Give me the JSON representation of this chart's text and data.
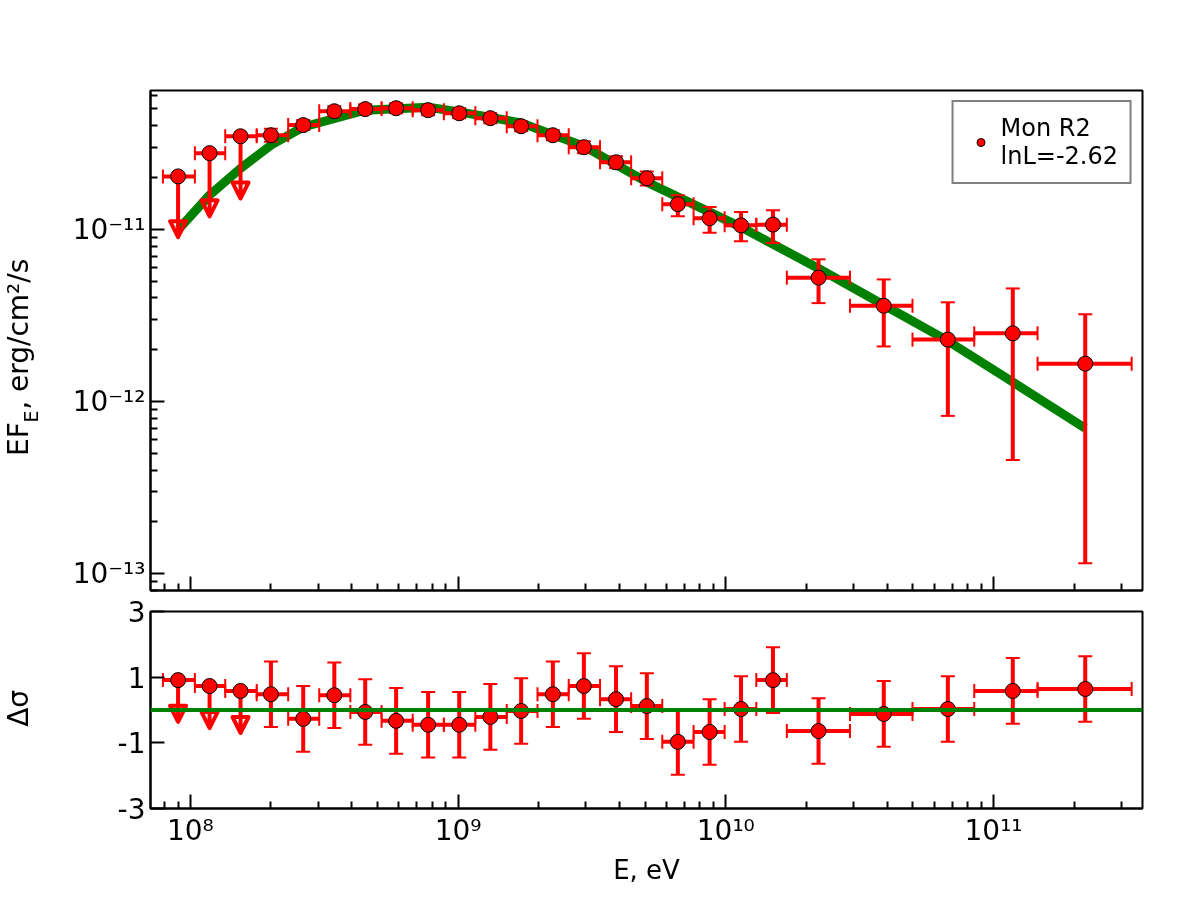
{
  "chart_data": [
    {
      "type": "scatter",
      "ylabel": "EF$_{E}$, erg/cm²/s",
      "log": "xy",
      "legend": "top right",
      "tick_labels": "y",
      "marker": "circle",
      "grid": false,
      "x": [
        90000000.0,
        118000000.0,
        154000000.0,
        200000000.0,
        264000000.0,
        345000000.0,
        450000000.0,
        587000000.0,
        773000000.0,
        1010000000.0,
        1320000000.0,
        1720000000.0,
        2260000000.0,
        2950000000.0,
        3890000000.0,
        5070000000.0,
        6620000000.0,
        8700000000.0,
        11400000000.0,
        15000000000.0,
        22200000000.0,
        38900000000.0,
        67500000000.0,
        118000000000.0,
        220000000000.0
      ],
      "xlim": [
        71000000.0,
        360000000000.0
      ],
      "xticks": [
        {
          "value": 100000000.0,
          "label": null
        },
        {
          "value": 1000000000.0,
          "label": null
        },
        {
          "value": 10000000000.0,
          "label": null
        },
        {
          "value": 100000000000.0,
          "label": null
        }
      ],
      "ylim": [
        8e-14,
        6.4e-11
      ],
      "yticks": [
        {
          "value": 1e-13,
          "label": "10⁻¹³"
        },
        {
          "value": 1e-12,
          "label": "10⁻¹²"
        },
        {
          "value": 1e-11,
          "label": "10⁻¹¹"
        }
      ],
      "series": [
        {
          "type": "line",
          "marker": "none",
          "color": "#008000",
          "x": [
            90400000.0,
            118000000.0,
            154000000.0,
            200000000.0,
            264000000.0,
            450000000.0,
            773000000.0,
            1010000000.0,
            1720000000.0,
            2950000000.0,
            5070000000.0,
            11400000000.0,
            22200000000.0,
            38000000000.0,
            65000000000.0,
            111000000000.0,
            220000000000.0
          ],
          "values": [
            1e-11,
            1.58e-11,
            2.26e-11,
            3.08e-11,
            3.93e-11,
            4.92e-11,
            5.12e-11,
            4.81e-11,
            4.15e-11,
            3.04e-11,
            1.88e-11,
            1.03e-11,
            5.93e-12,
            3.71e-12,
            2.33e-12,
            1.38e-12,
            7e-13
          ]
        },
        {
          "name": "Mon R2\nlnL=-2.62",
          "color": "#ff0000",
          "values": [
            2.03e-11,
            2.77e-11,
            3.47e-11,
            3.52e-11,
            4.03e-11,
            4.85e-11,
            4.99e-11,
            5.05e-11,
            4.92e-11,
            4.72e-11,
            4.42e-11,
            3.97e-11,
            3.52e-11,
            3e-11,
            2.45e-11,
            1.98e-11,
            1.4e-11,
            1.16e-11,
            1.055e-11,
            1.065e-11,
            5.24e-12,
            3.6e-12,
            2.29e-12,
            2.49e-12,
            1.66e-12
          ],
          "errors": [
            [
              9e-12,
              2.03e-11
            ],
            [
              1.19e-11,
              2.77e-11
            ],
            [
              1.51e-11,
              3.47e-11
            ],
            [
              3.23e-11,
              3.84e-11
            ],
            [
              3.77e-11,
              4.31e-11
            ],
            [
              4.54e-11,
              5.18e-11
            ],
            [
              4.67e-11,
              5.33e-11
            ],
            [
              4.72e-11,
              5.4e-11
            ],
            [
              4.6e-11,
              5.26e-11
            ],
            [
              4.42e-11,
              5.05e-11
            ],
            [
              4.13e-11,
              4.72e-11
            ],
            [
              3.71e-11,
              4.24e-11
            ],
            [
              3.29e-11,
              3.76e-11
            ],
            [
              2.77e-11,
              3.25e-11
            ],
            [
              2.26e-11,
              2.66e-11
            ],
            [
              1.8e-11,
              2.17e-11
            ],
            [
              1.19e-11,
              1.58e-11
            ],
            [
              9.57e-12,
              1.35e-11
            ],
            [
              8.52e-12,
              1.26e-11
            ],
            [
              8.33e-12,
              1.29e-11
            ],
            [
              3.73e-12,
              6.7e-12
            ],
            [
              2.09e-12,
              5.12e-12
            ],
            [
              8.26e-13,
              3.77e-12
            ],
            [
              4.58e-13,
              4.54e-12
            ],
            [
              1.15e-13,
              3.21e-12
            ]
          ],
          "xerrors": [
            [
              79000000.0,
              104000000.0
            ],
            [
              104000000.0,
              135000000.0
            ],
            [
              135000000.0,
              177000000.0
            ],
            [
              177000000.0,
              232000000.0
            ],
            [
              232000000.0,
              303000000.0
            ],
            [
              303000000.0,
              396000000.0
            ],
            [
              396000000.0,
              518000000.0
            ],
            [
              518000000.0,
              677000000.0
            ],
            [
              677000000.0,
              885000000.0
            ],
            [
              885000000.0,
              1160000000.0
            ],
            [
              1160000000.0,
              1520000000.0
            ],
            [
              1520000000.0,
              1980000000.0
            ],
            [
              1980000000.0,
              2590000000.0
            ],
            [
              2590000000.0,
              3390000000.0
            ],
            [
              3390000000.0,
              4430000000.0
            ],
            [
              4430000000.0,
              5790000000.0
            ],
            [
              5790000000.0,
              7580000000.0
            ],
            [
              7580000000.0,
              9900000000.0
            ],
            [
              9900000000.0,
              13000000000.0
            ],
            [
              13000000000.0,
              16900000000.0
            ],
            [
              16900000000.0,
              29100000000.0
            ],
            [
              29100000000.0,
              49800000000.0
            ],
            [
              49800000000.0,
              84700000000.0
            ],
            [
              84700000000.0,
              146000000000.0
            ],
            [
              146000000000.0,
              328000000000.0
            ]
          ]
        }
      ]
    },
    {
      "type": "scatter",
      "xlabel": "E, eV",
      "ylabel": "Δσ",
      "log": "x",
      "marker": "circle",
      "grid": false,
      "x": [
        90000000.0,
        118000000.0,
        154000000.0,
        200000000.0,
        264000000.0,
        345000000.0,
        450000000.0,
        587000000.0,
        773000000.0,
        1010000000.0,
        1320000000.0,
        1720000000.0,
        2260000000.0,
        2950000000.0,
        3890000000.0,
        5070000000.0,
        6620000000.0,
        8700000000.0,
        11400000000.0,
        15000000000.0,
        22200000000.0,
        38900000000.0,
        67500000000.0,
        118000000000.0,
        220000000000.0
      ],
      "xlim": [
        71000000.0,
        360000000000.0
      ],
      "xticks": [
        {
          "value": 100000000.0,
          "label": "10⁸"
        },
        {
          "value": 1000000000.0,
          "label": "10⁹"
        },
        {
          "value": 10000000000.0,
          "label": "10¹⁰"
        },
        {
          "value": 100000000000.0,
          "label": "10¹¹"
        }
      ],
      "ylim": [
        -3,
        3
      ],
      "yticks": [
        -3,
        -1,
        1,
        3
      ],
      "ref_lines": [
        {
          "axis": "y",
          "value": 0,
          "color": "#008000"
        }
      ],
      "series": [
        {
          "color": "#ff0000",
          "values": [
            0.91,
            0.73,
            0.58,
            0.48,
            -0.27,
            0.45,
            -0.06,
            -0.33,
            -0.45,
            -0.45,
            -0.21,
            -0.03,
            0.48,
            0.73,
            0.33,
            0.12,
            -0.97,
            -0.67,
            0.03,
            0.91,
            -0.64,
            -0.12,
            0.03,
            0.58,
            0.64
          ],
          "errors": [
            [
              -0.36,
              0.91
            ],
            [
              -0.55,
              0.73
            ],
            [
              -0.7,
              0.58
            ],
            1,
            1,
            1,
            1,
            1,
            1,
            1,
            1,
            1,
            1,
            1,
            1,
            1,
            1,
            1,
            1,
            1,
            1,
            1,
            1,
            1,
            1
          ],
          "xerrors": [
            [
              79000000.0,
              104000000.0
            ],
            [
              104000000.0,
              135000000.0
            ],
            [
              135000000.0,
              177000000.0
            ],
            [
              177000000.0,
              232000000.0
            ],
            [
              232000000.0,
              303000000.0
            ],
            [
              303000000.0,
              396000000.0
            ],
            [
              396000000.0,
              518000000.0
            ],
            [
              518000000.0,
              677000000.0
            ],
            [
              677000000.0,
              885000000.0
            ],
            [
              885000000.0,
              1160000000.0
            ],
            [
              1160000000.0,
              1520000000.0
            ],
            [
              1520000000.0,
              1980000000.0
            ],
            [
              1980000000.0,
              2590000000.0
            ],
            [
              2590000000.0,
              3390000000.0
            ],
            [
              3390000000.0,
              4430000000.0
            ],
            [
              4430000000.0,
              5790000000.0
            ],
            [
              5790000000.0,
              7580000000.0
            ],
            [
              7580000000.0,
              9900000000.0
            ],
            [
              9900000000.0,
              13000000000.0
            ],
            [
              13000000000.0,
              16900000000.0
            ],
            [
              16900000000.0,
              29100000000.0
            ],
            [
              29100000000.0,
              49800000000.0
            ],
            [
              49800000000.0,
              84700000000.0
            ],
            [
              84700000000.0,
              146000000000.0
            ],
            [
              146000000000.0,
              328000000000.0
            ]
          ]
        }
      ]
    }
  ]
}
